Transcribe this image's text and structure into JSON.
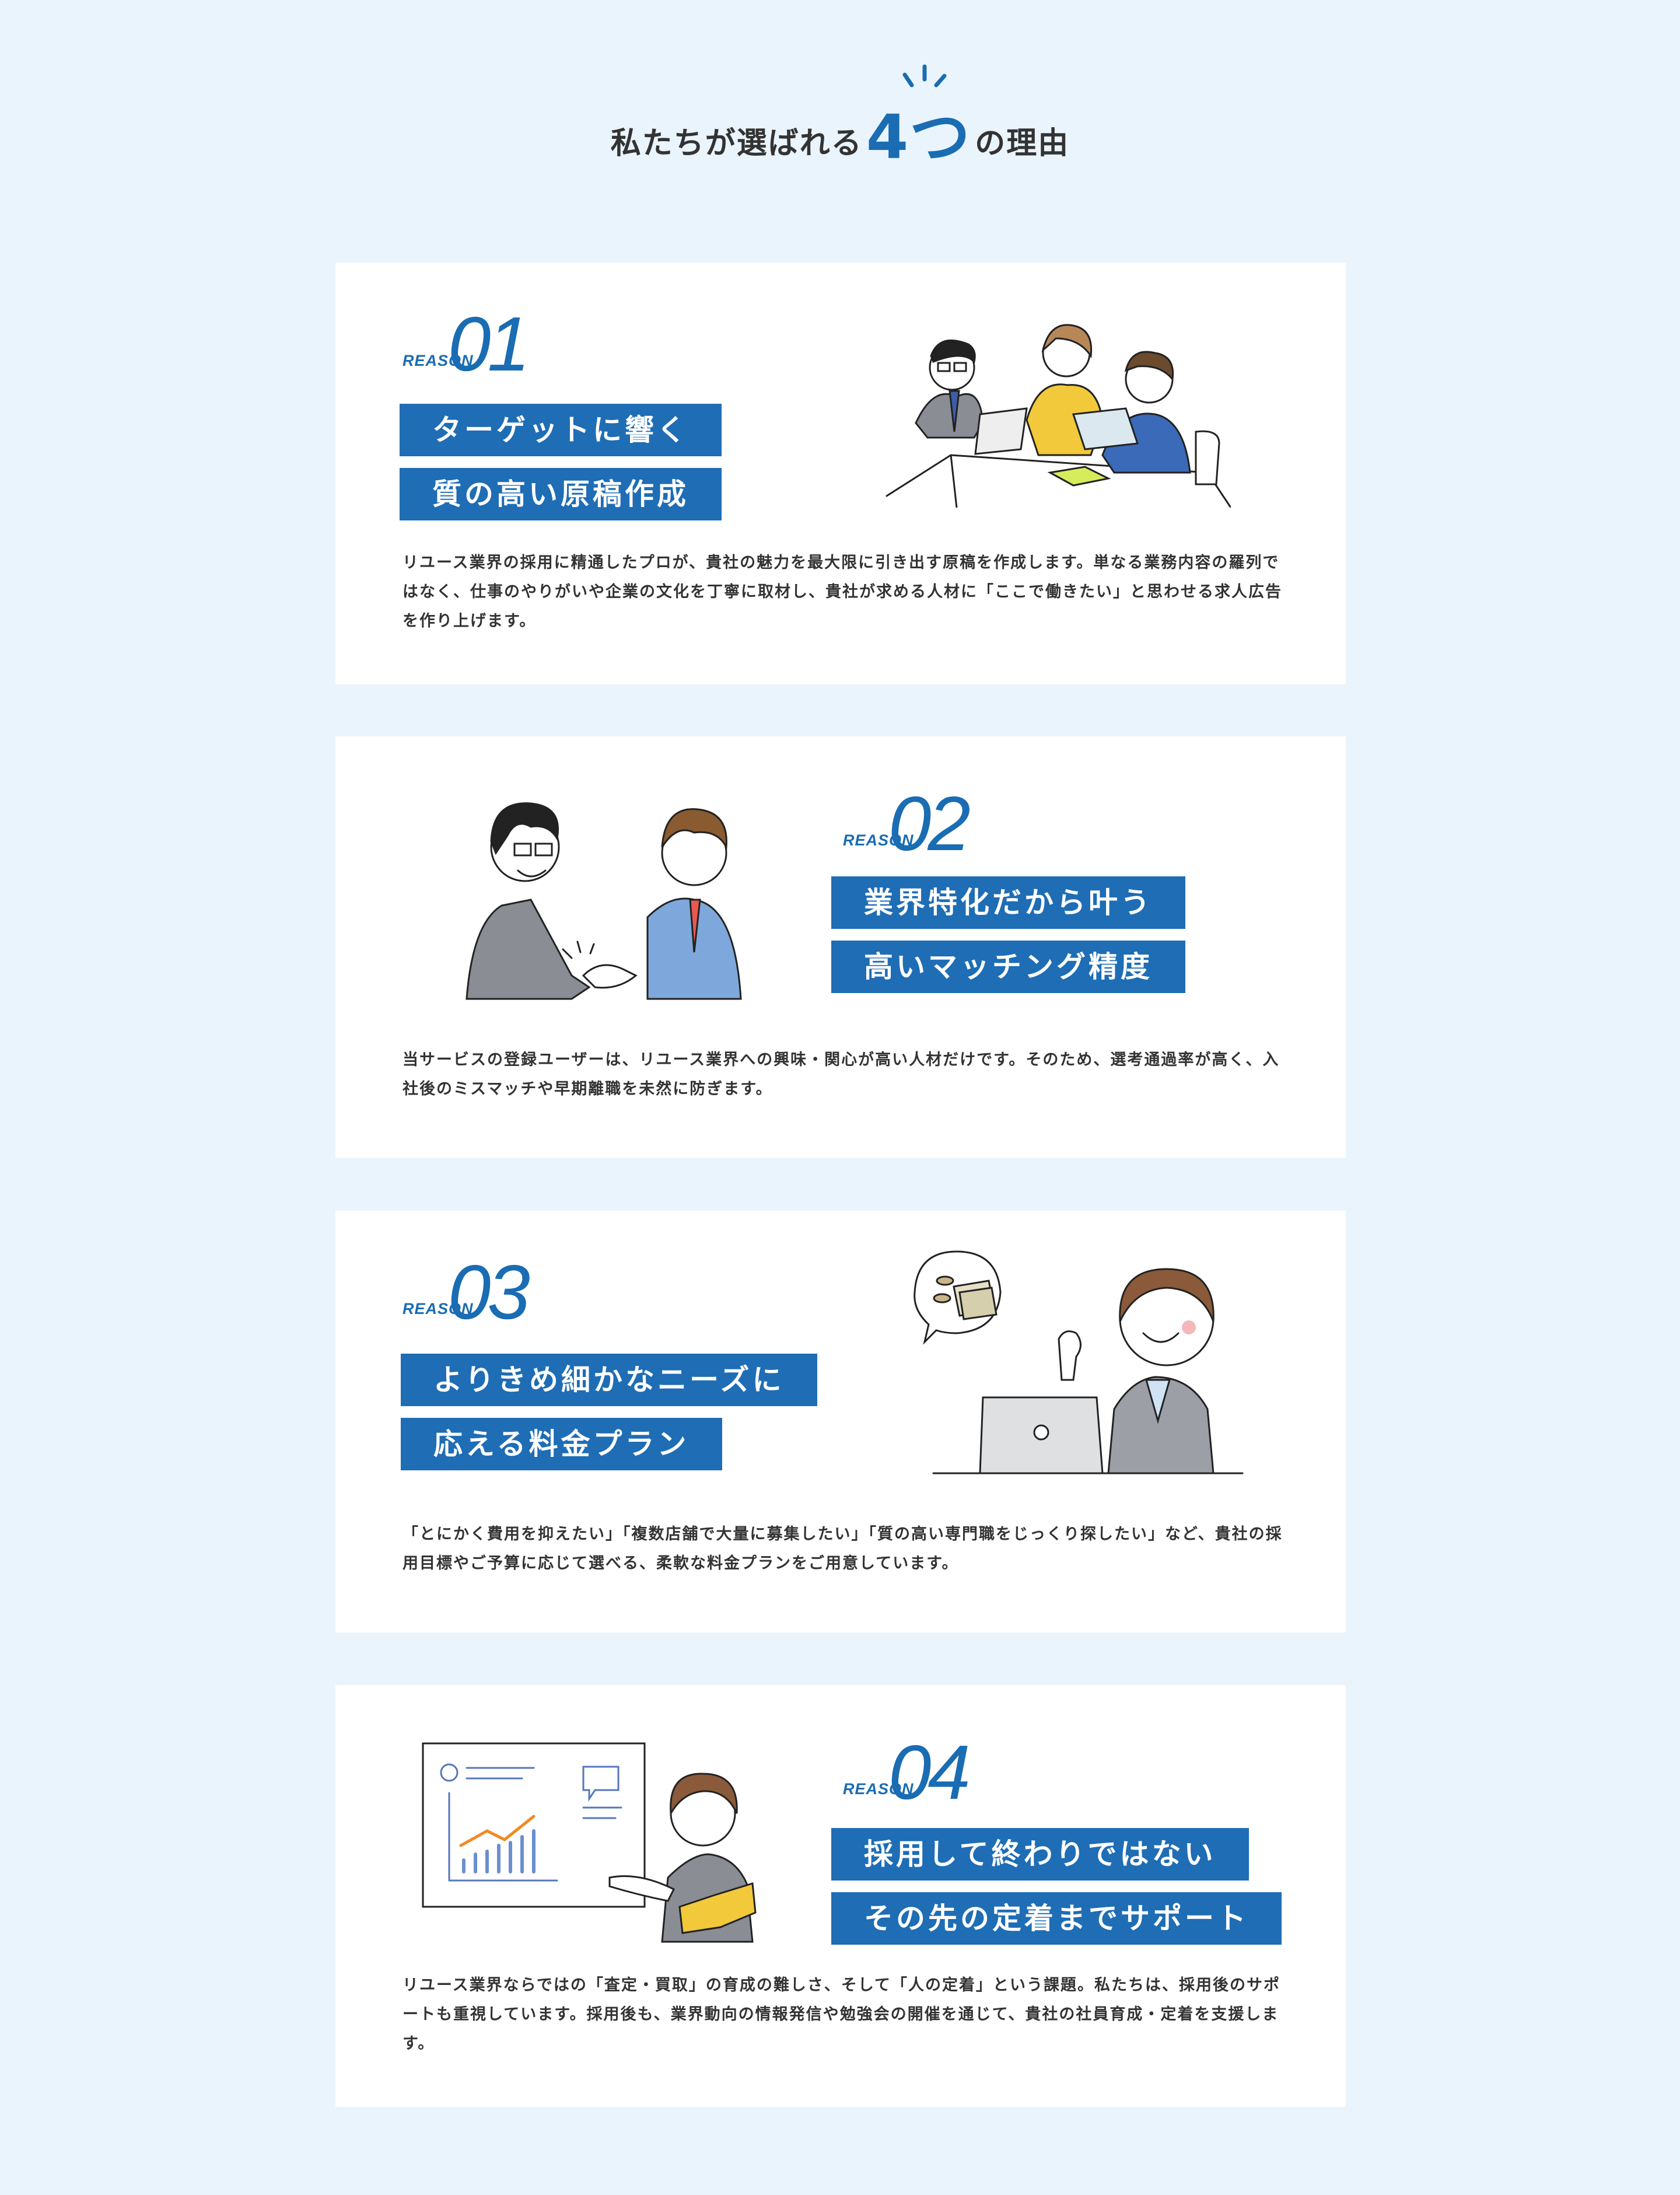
{
  "heading": {
    "pre": "私たちが選ばれる",
    "num": "4つ",
    "post": "の理由"
  },
  "reasons": [
    {
      "label": "REASON",
      "number": "01",
      "title_lines": [
        "ターゲットに響く",
        "質の高い原稿作成"
      ],
      "description": "リユース業界の採用に精通したプロが、貴社の魅力を最大限に引き出す原稿を作成します。単なる業務内容の羅列ではなく、仕事のやりがいや企業の文化を丁寧に取材し、貴社が求める人材に「ここで働きたい」と思わせる求人広告を作り上げます。",
      "illustration": "team-meeting-illustration"
    },
    {
      "label": "REASON",
      "number": "02",
      "title_lines": [
        "業界特化だから叶う",
        "高いマッチング精度"
      ],
      "description": "当サービスの登録ユーザーは、リユース業界への興味・関心が高い人材だけです。そのため、選考通過率が高く、入社後のミスマッチや早期離職を未然に防ぎます。",
      "illustration": "handshake-illustration"
    },
    {
      "label": "REASON",
      "number": "03",
      "title_lines": [
        "よりきめ細かなニーズに",
        "応える料金プラン"
      ],
      "description": "「とにかく費用を抑えたい」「複数店舗で大量に募集したい」「質の高い専門職をじっくり探したい」など、貴社の採用目標やご予算に応じて選べる、柔軟な料金プランをご用意しています。",
      "illustration": "woman-money-illustration"
    },
    {
      "label": "REASON",
      "number": "04",
      "title_lines": [
        "採用して終わりではない",
        "その先の定着までサポート"
      ],
      "description": "リユース業界ならではの「査定・買取」の育成の難しさ、そして「人の定着」という課題。私たちは、採用後のサポートも重視しています。採用後も、業界動向の情報発信や勉強会の開催を通じて、貴社の社員育成・定着を支援します。",
      "illustration": "presentation-illustration"
    }
  ],
  "colors": {
    "accent": "#1e6db5",
    "background": "#eaf4fd",
    "card": "#ffffff",
    "text": "#333333"
  }
}
